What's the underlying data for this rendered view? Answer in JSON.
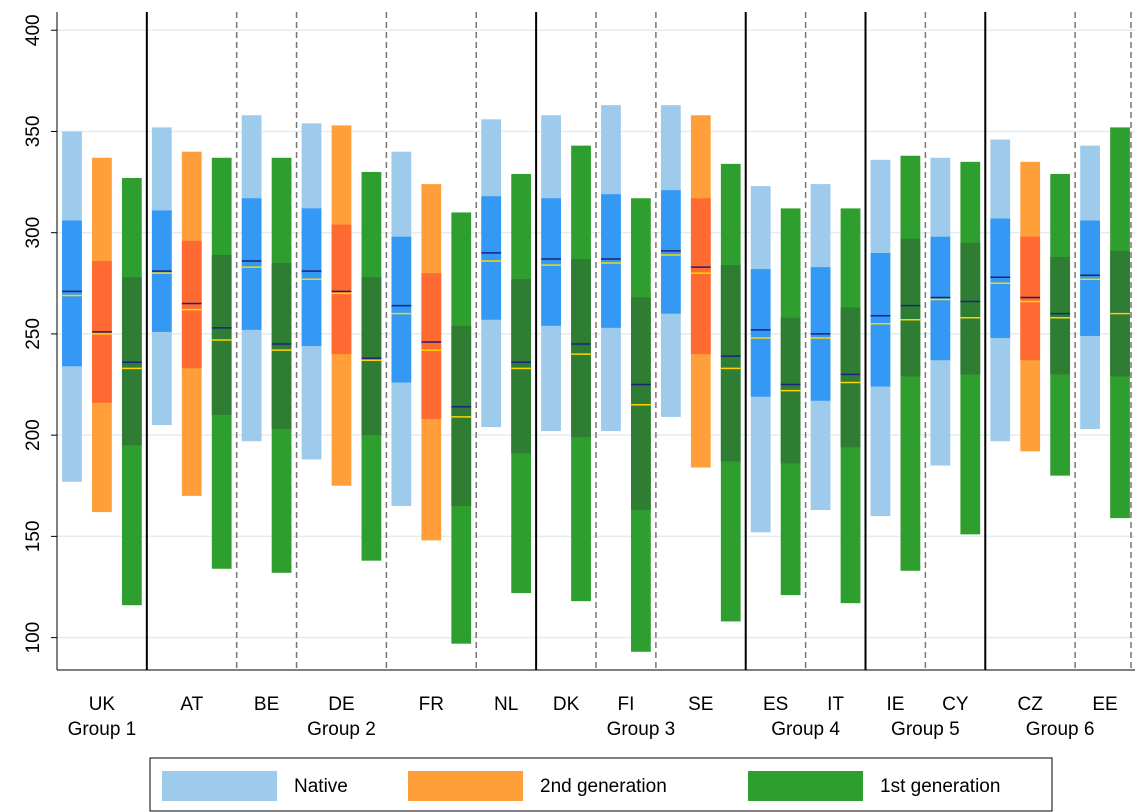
{
  "chart_data": {
    "type": "percentile-bar",
    "categories": [
      "UK",
      "AT",
      "BE",
      "DE",
      "FR",
      "NL",
      "DK",
      "FI",
      "SE",
      "ES",
      "IT",
      "IE",
      "CY",
      "CZ",
      "EE"
    ],
    "groups": [
      {
        "name": "Group 1",
        "categories": [
          "UK"
        ]
      },
      {
        "name": "Group 2",
        "categories": [
          "AT",
          "BE",
          "DE",
          "FR",
          "NL"
        ]
      },
      {
        "name": "Group 3",
        "categories": [
          "DK",
          "FI",
          "SE"
        ]
      },
      {
        "name": "Group 4",
        "categories": [
          "ES",
          "IT"
        ]
      },
      {
        "name": "Group 5",
        "categories": [
          "IE",
          "CY"
        ]
      },
      {
        "name": "Group 6",
        "categories": [
          "CZ",
          "EE"
        ]
      }
    ],
    "series": [
      {
        "name": "Native",
        "color": "#9ecbec",
        "inner_color": "#3399f5",
        "p5": [
          177,
          205,
          197,
          188,
          165,
          204,
          202,
          202,
          209,
          152,
          163,
          160,
          185,
          197,
          203
        ],
        "p25": [
          234,
          251,
          252,
          244,
          226,
          257,
          254,
          253,
          260,
          219,
          217,
          224,
          237,
          248,
          249
        ],
        "p75": [
          306,
          311,
          317,
          312,
          298,
          318,
          317,
          319,
          321,
          282,
          283,
          290,
          298,
          307,
          306
        ],
        "p95": [
          350,
          352,
          358,
          354,
          340,
          356,
          358,
          363,
          363,
          323,
          324,
          336,
          337,
          346,
          343
        ],
        "mean": [
          271,
          281,
          286,
          281,
          264,
          290,
          287,
          287,
          291,
          252,
          250,
          259,
          268,
          278,
          279
        ],
        "median": [
          269,
          280,
          283,
          277,
          260,
          286,
          284,
          285,
          289,
          248,
          248,
          255,
          267,
          275,
          277
        ]
      },
      {
        "name": "2nd generation",
        "color": "#ff9f3a",
        "inner_color": "#ff6a33",
        "p5": [
          162,
          170,
          null,
          175,
          148,
          null,
          null,
          null,
          184,
          null,
          null,
          null,
          null,
          192,
          null
        ],
        "p25": [
          216,
          233,
          null,
          240,
          208,
          null,
          null,
          null,
          240,
          null,
          null,
          null,
          null,
          237,
          null
        ],
        "p75": [
          286,
          296,
          null,
          304,
          280,
          null,
          null,
          null,
          317,
          null,
          null,
          null,
          null,
          298,
          null
        ],
        "p95": [
          337,
          340,
          null,
          353,
          324,
          null,
          null,
          null,
          358,
          null,
          null,
          null,
          null,
          335,
          null
        ],
        "mean": [
          251,
          265,
          null,
          271,
          246,
          null,
          null,
          null,
          283,
          null,
          null,
          null,
          null,
          268,
          null
        ],
        "median": [
          250,
          262,
          null,
          270,
          242,
          null,
          null,
          null,
          280,
          null,
          null,
          null,
          null,
          266,
          null
        ]
      },
      {
        "name": "1st generation",
        "color": "#2e9e2e",
        "inner_color": "#2e7d32",
        "p5": [
          116,
          134,
          132,
          138,
          97,
          122,
          118,
          93,
          108,
          121,
          117,
          133,
          151,
          180,
          159
        ],
        "p25": [
          195,
          210,
          203,
          200,
          165,
          191,
          199,
          163,
          187,
          186,
          194,
          229,
          230,
          230,
          229
        ],
        "p75": [
          278,
          289,
          285,
          278,
          254,
          277,
          287,
          268,
          284,
          258,
          263,
          297,
          295,
          288,
          291
        ],
        "p95": [
          327,
          337,
          337,
          330,
          310,
          329,
          343,
          317,
          334,
          312,
          312,
          338,
          335,
          329,
          352
        ],
        "mean": [
          236,
          253,
          245,
          238,
          214,
          236,
          245,
          225,
          239,
          225,
          230,
          264,
          266,
          260,
          260
        ],
        "median": [
          233,
          247,
          242,
          237,
          209,
          233,
          240,
          215,
          233,
          222,
          226,
          257,
          258,
          258,
          260
        ]
      }
    ],
    "mean_color": "#1a237e",
    "median_color": "#ffd400",
    "ylim": [
      84,
      409
    ],
    "yticks": [
      100,
      150,
      200,
      250,
      300,
      350,
      400
    ],
    "grid": true,
    "legend": "bottom"
  }
}
